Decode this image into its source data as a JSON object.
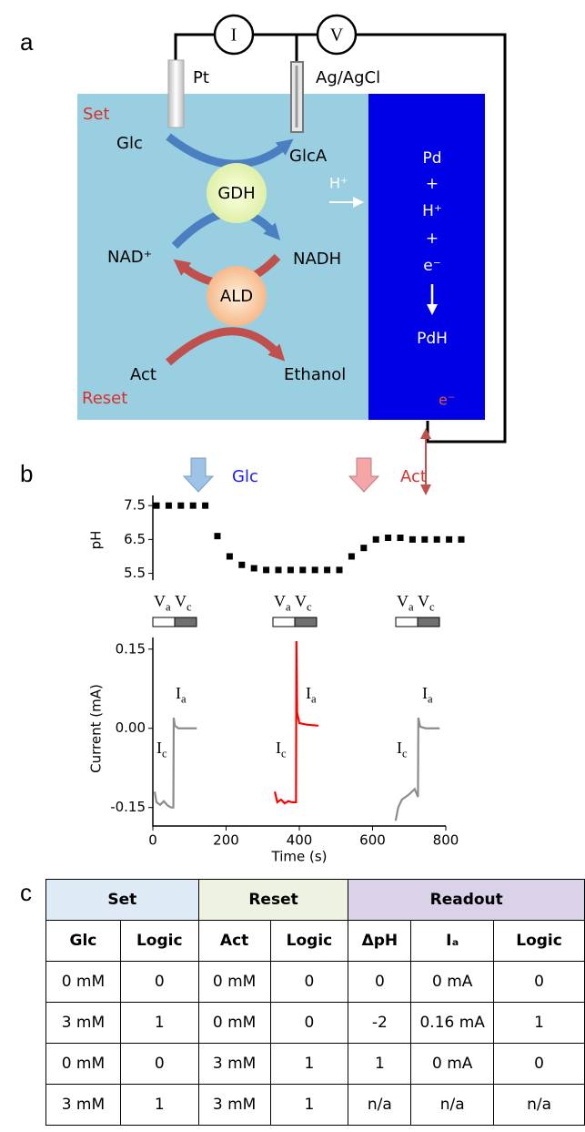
{
  "diagram": {
    "label": "a",
    "meters": [
      "I",
      "V"
    ],
    "electrodes": [
      "Pt",
      "Ag/AgCl"
    ],
    "set": "Set",
    "reset": "Reset",
    "species": {
      "glc": "Glc",
      "glca": "GlcA",
      "nad": "NAD⁺",
      "nadh": "NADH",
      "act": "Act",
      "ethanol": "Ethanol"
    },
    "enzymes": [
      "GDH",
      "ALD"
    ],
    "proton": "H⁺",
    "pd_reaction": [
      "Pd",
      "+",
      "H⁺",
      "+",
      "e⁻"
    ],
    "product": "PdH",
    "electron": "e⁻"
  },
  "chart_data": [
    {
      "type": "dot",
      "label": "b",
      "ylabel": "pH",
      "color": "#000000",
      "annotations": [
        {
          "text": "Glc",
          "color": "#1a1aff"
        },
        {
          "text": "Act",
          "color": "#d9302b"
        }
      ],
      "categories": [
        null,
        null,
        null,
        null,
        null,
        null,
        null,
        null,
        null,
        null,
        null,
        null,
        null,
        null,
        null,
        null,
        null,
        null,
        null,
        null,
        null,
        null,
        null,
        null,
        null,
        null
      ],
      "values": [
        7.5,
        7.5,
        7.5,
        7.5,
        7.5,
        6.6,
        6.0,
        5.75,
        5.65,
        5.6,
        5.6,
        5.6,
        5.6,
        5.6,
        5.6,
        5.6,
        6.0,
        6.25,
        6.5,
        6.55,
        6.55,
        6.5,
        6.5,
        6.5,
        6.5,
        6.5
      ],
      "ylim": [
        5.3,
        7.8
      ],
      "yticks": [
        5.5,
        6.5,
        7.5
      ]
    },
    {
      "type": "line",
      "xlabel": "Time (s)",
      "ylabel": "Current (mA)",
      "voltage_labels": [
        {
          "text": "V",
          "sub": "a"
        },
        {
          "text": "V",
          "sub": "c"
        }
      ],
      "current_labels": [
        {
          "text": "I",
          "sub": "a"
        },
        {
          "text": "I",
          "sub": "c"
        }
      ],
      "series": [
        {
          "color": "#8c8c8c",
          "x": [
            5,
            10,
            20,
            30,
            40,
            50,
            56,
            57,
            60,
            70,
            90,
            120
          ],
          "values": [
            -0.12,
            -0.14,
            -0.145,
            -0.138,
            -0.146,
            -0.15,
            -0.15,
            0.02,
            0.005,
            0.0,
            0.0,
            0.0
          ]
        },
        {
          "color": "#ff0000",
          "x": [
            333,
            340,
            350,
            360,
            370,
            380,
            391,
            392,
            394,
            400,
            420,
            452
          ],
          "values": [
            -0.12,
            -0.14,
            -0.135,
            -0.142,
            -0.138,
            -0.14,
            -0.14,
            0.165,
            0.03,
            0.01,
            0.007,
            0.005
          ]
        },
        {
          "color": "#8c8c8c",
          "x": [
            663,
            670,
            680,
            690,
            700,
            715,
            724,
            725,
            730,
            745,
            760,
            783
          ],
          "values": [
            -0.175,
            -0.15,
            -0.135,
            -0.13,
            -0.125,
            -0.115,
            -0.13,
            0.02,
            0.003,
            0.0,
            0.0,
            0.0
          ]
        }
      ],
      "xlim": [
        0,
        800
      ],
      "xticks": [
        0,
        200,
        400,
        600,
        800
      ],
      "ylim": [
        -0.185,
        0.172
      ],
      "yticks": [
        -0.15,
        {
          "value": 0,
          "label": "0.00"
        },
        0.15
      ]
    }
  ],
  "table": {
    "label": "c",
    "groups": [
      "Set",
      "Reset",
      "Readout"
    ],
    "columns": [
      "Glc",
      "Logic",
      "Act",
      "Logic",
      "ΔpH",
      "Iₐ",
      "Logic"
    ],
    "rows": [
      [
        "0 mM",
        "0",
        "0 mM",
        "0",
        "0",
        "0 mA",
        "0"
      ],
      [
        "3 mM",
        "1",
        "0 mM",
        "0",
        "-2",
        "0.16 mA",
        "1"
      ],
      [
        "0 mM",
        "0",
        "3 mM",
        "1",
        "1",
        "0 mA",
        "0"
      ],
      [
        "3 mM",
        "1",
        "3 mM",
        "1",
        "n/a",
        "n/a",
        "n/a"
      ]
    ]
  }
}
